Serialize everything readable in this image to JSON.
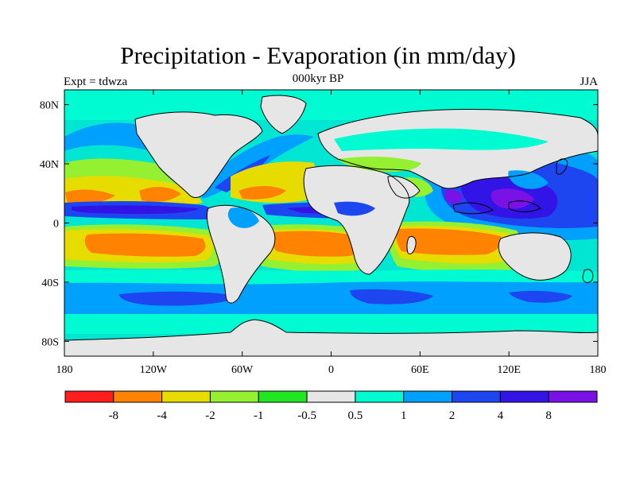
{
  "title": "Precipitation - Evaporation (in mm/day)",
  "subtitle": "000kyr BP",
  "left_label": "Expt = tdwza",
  "right_label": "JJA",
  "map": {
    "projection": "cylindrical-equidistant",
    "lon_range": [
      -180,
      180
    ],
    "lat_range": [
      -90,
      90
    ],
    "x_ticks": [
      {
        "value": -180,
        "label": "180"
      },
      {
        "value": -120,
        "label": "120W"
      },
      {
        "value": -60,
        "label": "60W"
      },
      {
        "value": 0,
        "label": "0"
      },
      {
        "value": 60,
        "label": "60E"
      },
      {
        "value": 120,
        "label": "120E"
      },
      {
        "value": 180,
        "label": "180"
      }
    ],
    "y_ticks": [
      {
        "value": 80,
        "label": "80N"
      },
      {
        "value": 40,
        "label": "40N"
      },
      {
        "value": 0,
        "label": "0"
      },
      {
        "value": -40,
        "label": "40S"
      },
      {
        "value": -80,
        "label": "80S"
      }
    ],
    "land_color": "#e6e6e6",
    "ocean_default_color": "#00e6d2"
  },
  "colorbar": {
    "colors": [
      "#ff1e1e",
      "#ff8200",
      "#e6dc00",
      "#96f032",
      "#22e622",
      "#e6e6e6",
      "#00fad2",
      "#00a0ff",
      "#1e46f0",
      "#3214e6",
      "#7812e6"
    ],
    "labels": [
      "-8",
      "-4",
      "-2",
      "-1",
      "-0.5",
      "0.5",
      "1",
      "2",
      "4",
      "8"
    ]
  }
}
